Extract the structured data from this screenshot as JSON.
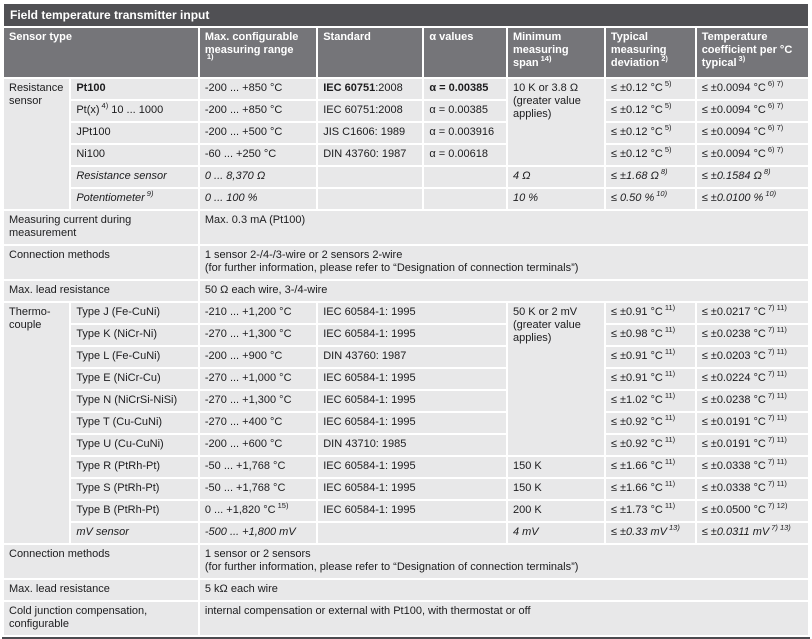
{
  "title": "Field temperature transmitter input",
  "header": {
    "sensor_type": "Sensor type",
    "range_t": "Max. configurable measuring range",
    "range_s": "1)",
    "standard": "Standard",
    "alpha": "α values",
    "span_t": "Minimum measuring span",
    "span_s": "14)",
    "dev_t": "Typical measuring deviation",
    "dev_s": "2)",
    "tc_t": "Temperature coefficient per °C typical",
    "tc_s": "3)"
  },
  "res": {
    "group": "Resistance sensor",
    "shared1": "10 K or 3.8 Ω",
    "shared2": "(greater value applies)",
    "rows": [
      {
        "name": "Pt100",
        "range": "-200 ... +850 °C",
        "std_b": "IEC 60751",
        "std_r": ":2008",
        "alpha": "α = 0.00385",
        "dev": "≤ ±0.12 °C",
        "dev_s": "5)",
        "tc": "≤ ±0.0094 °C",
        "tc_s": "6) 7)"
      },
      {
        "name": "Pt(x)",
        "name_s": "4)",
        "name2": "10 ... 1000",
        "range": "-200 ... +850 °C",
        "std": "IEC 60751:2008",
        "alpha": "α = 0.00385",
        "dev": "≤ ±0.12 °C",
        "dev_s": "5)",
        "tc": "≤ ±0.0094 °C",
        "tc_s": "6) 7)"
      },
      {
        "name": "JPt100",
        "range": "-200 ... +500 °C",
        "std": "JIS C1606: 1989",
        "alpha": "α = 0.003916",
        "dev": "≤ ±0.12 °C",
        "dev_s": "5)",
        "tc": "≤ ±0.0094 °C",
        "tc_s": "6) 7)"
      },
      {
        "name": "Ni100",
        "range": "-60 ... +250 °C",
        "std": "DIN 43760: 1987",
        "alpha": "α = 0.00618",
        "dev": "≤ ±0.12 °C",
        "dev_s": "5)",
        "tc": "≤ ±0.0094 °C",
        "tc_s": "6) 7)"
      },
      {
        "name": "Resistance sensor",
        "range": "0 ... 8,370 Ω",
        "span": "4 Ω",
        "dev": "≤ ±1.68 Ω",
        "dev_s": "8)",
        "tc": "≤ ±0.1584 Ω",
        "tc_s": "8)"
      },
      {
        "name": "Potentiometer",
        "name_s": "9)",
        "range": "0 ... 100 %",
        "span": "10 %",
        "dev": "≤ 0.50 %",
        "dev_s": "10)",
        "tc": "≤ ±0.0100 %",
        "tc_s": "10)"
      }
    ]
  },
  "mid1": {
    "current_label": "Measuring current during measurement",
    "current_value": "Max. 0.3 mA (Pt100)",
    "conn_label": "Connection methods",
    "conn_v1": "1 sensor 2-/4-/3-wire or 2 sensors 2-wire",
    "conn_v2": "(for further information, please refer to “Designation of connection terminals”)",
    "lead_label": "Max. lead resistance",
    "lead_value": "50 Ω each wire, 3-/4-wire"
  },
  "tcs": {
    "group": "Thermo-couple",
    "shared1": "50 K or 2 mV",
    "shared2": "(greater value applies)",
    "rows": [
      {
        "name": "Type J (Fe-CuNi)",
        "range": "-210 ... +1,200 °C",
        "std": "IEC 60584-1: 1995",
        "dev": "≤ ±0.91 °C",
        "dev_s": "11)",
        "tc": "≤ ±0.0217 °C",
        "tc_s": "7) 11)"
      },
      {
        "name": "Type K (NiCr-Ni)",
        "range": "-270 ... +1,300 °C",
        "std": "IEC 60584-1: 1995",
        "dev": "≤ ±0.98 °C",
        "dev_s": "11)",
        "tc": "≤ ±0.0238 °C",
        "tc_s": "7) 11)"
      },
      {
        "name": "Type L (Fe-CuNi)",
        "range": "-200 ... +900 °C",
        "std": "DIN 43760: 1987",
        "dev": "≤ ±0.91 °C",
        "dev_s": "11)",
        "tc": "≤ ±0.0203 °C",
        "tc_s": "7) 11)"
      },
      {
        "name": "Type E (NiCr-Cu)",
        "range": "-270 ... +1,000 °C",
        "std": "IEC 60584-1: 1995",
        "dev": "≤ ±0.91 °C",
        "dev_s": "11)",
        "tc": "≤ ±0.0224 °C",
        "tc_s": "7) 11)"
      },
      {
        "name": "Type N (NiCrSi-NiSi)",
        "range": "-270 ... +1,300 °C",
        "std": "IEC 60584-1: 1995",
        "dev": "≤ ±1.02 °C",
        "dev_s": "11)",
        "tc": "≤ ±0.0238 °C",
        "tc_s": "7) 11)"
      },
      {
        "name": "Type T (Cu-CuNi)",
        "range": "-270 ... +400 °C",
        "std": "IEC 60584-1: 1995",
        "dev": "≤ ±0.92 °C",
        "dev_s": "11)",
        "tc": "≤ ±0.0191 °C",
        "tc_s": "7) 11)"
      },
      {
        "name": "Type U (Cu-CuNi)",
        "range": "-200 ... +600 °C",
        "std": "DIN 43710: 1985",
        "dev": "≤ ±0.92 °C",
        "dev_s": "11)",
        "tc": "≤ ±0.0191 °C",
        "tc_s": "7) 11)"
      },
      {
        "name": "Type R (PtRh-Pt)",
        "range": "-50 ... +1,768 °C",
        "std": "IEC 60584-1: 1995",
        "span": "150 K",
        "dev": "≤ ±1.66 °C",
        "dev_s": "11)",
        "tc": "≤ ±0.0338 °C",
        "tc_s": "7) 11)"
      },
      {
        "name": "Type S (PtRh-Pt)",
        "range": "-50 ... +1,768 °C",
        "std": "IEC 60584-1: 1995",
        "span": "150 K",
        "dev": "≤ ±1.66 °C",
        "dev_s": "11)",
        "tc": "≤ ±0.0338 °C",
        "tc_s": "7) 11)"
      },
      {
        "name": "Type B (PtRh-Pt)",
        "range": "0 ... +1,820 °C",
        "range_s": "15)",
        "std": "IEC 60584-1: 1995",
        "span": "200 K",
        "dev": "≤ ±1.73 °C",
        "dev_s": "11)",
        "tc": "≤ ±0.0500 °C",
        "tc_s": "7) 12)"
      },
      {
        "name": "mV sensor",
        "range": "-500 ... +1,800 mV",
        "span": "4 mV",
        "dev": "≤ ±0.33 mV",
        "dev_s": "13)",
        "tc": "≤ ±0.0311 mV",
        "tc_s": "7) 13)"
      }
    ]
  },
  "mid2": {
    "conn_label": "Connection methods",
    "conn_v1": "1 sensor or 2 sensors",
    "conn_v2": "(for further information, please refer to “Designation of connection terminals”)",
    "lead_label": "Max. lead resistance",
    "lead_value": "5 kΩ each wire",
    "cjc_label": "Cold junction compensation, configurable",
    "cjc_value": "internal compensation or external with Pt100, with thermostat or off"
  }
}
